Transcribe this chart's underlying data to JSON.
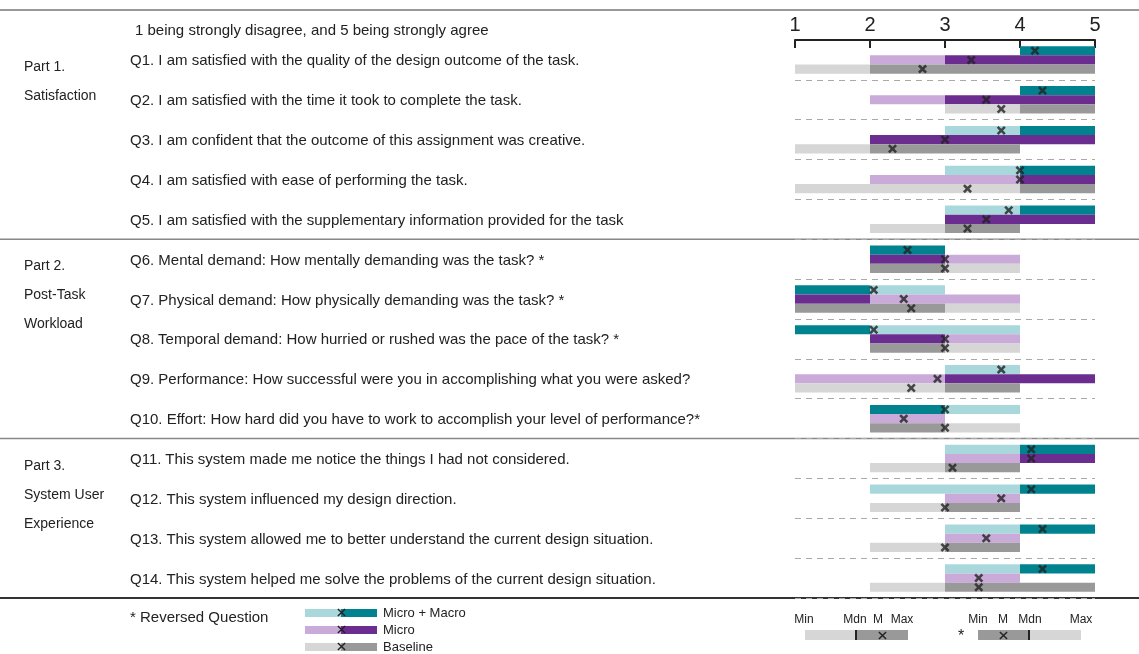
{
  "chart_data": {
    "type": "bar",
    "orientation": "horizontal",
    "title": "1 being strongly disagree, and 5 being strongly agree",
    "categories": [
      "Q1. I am satisfied with the quality of the design outcome of the task.",
      "Q2. I am satisfied with the time it took to complete the task.",
      "Q3. I am confident that the outcome of this assignment was creative.",
      "Q4. I am satisfied with ease of performing the task.",
      "Q5. I am satisfied with the supplementary information provided for the task",
      "Q6. Mental demand: How mentally demanding was the task? *",
      "Q7. Physical demand: How physically demanding was the task? *",
      "Q8. Temporal demand: How hurried or rushed was the pace of the task? *",
      "Q9. Performance: How successful were you in accomplishing what you were asked?",
      "Q10. Effort: How hard did you have to work to accomplish your level of performance?*",
      "Q11. This system made me notice the things I had not considered.",
      "Q12. This system influenced my design direction.",
      "Q13. This system allowed me to better understand the current design situation.",
      "Q14. This system helped me solve the problems of the current design situation."
    ],
    "xlim": [
      1,
      5
    ],
    "xticks": [
      1,
      2,
      3,
      4,
      5
    ],
    "grid": "y",
    "marker": "cross",
    "legend": "bottom",
    "series": [
      {
        "base": [
          null,
          null,
          3,
          3,
          3,
          2,
          1,
          1,
          3,
          2,
          3,
          2,
          3,
          3
        ],
        "values": [
          null,
          null,
          1,
          1,
          1,
          1,
          1,
          1,
          1,
          1,
          1,
          2,
          1,
          1
        ],
        "colors": [
          "#a8d8dc",
          null,
          "#a8d8dc",
          "#a8d8dc",
          "#a8d8dc",
          "#00838f",
          "#00838f",
          "#00838f",
          "#a8d8dc",
          "#00838f",
          "#a8d8dc",
          "#a8d8dc",
          "#a8d8dc",
          "#a8d8dc"
        ]
      },
      {
        "name": "Micro + Macro",
        "base": [
          4,
          4,
          4,
          4,
          4,
          null,
          2,
          2,
          null,
          3,
          4,
          4,
          4,
          4
        ],
        "values": [
          1,
          1,
          1,
          1,
          1,
          null,
          1,
          2,
          null,
          1,
          1,
          1,
          1,
          1
        ],
        "colors": [
          "#00838f",
          "#00838f",
          "#00838f",
          "#00838f",
          "#00838f",
          null,
          "#a8d8dc",
          "#a8d8dc",
          null,
          "#a8d8dc",
          "#00838f",
          "#00838f",
          "#00838f",
          "#00838f"
        ]
      },
      {
        "type": "scatter",
        "values": [
          4.2,
          4.3,
          3.75,
          4.0,
          3.85,
          2.5,
          2.05,
          2.05,
          3.75,
          3.0,
          4.15,
          4.15,
          4.3,
          4.3
        ]
      },
      {
        "base": [
          2,
          2,
          null,
          2,
          null,
          2,
          1,
          2,
          1,
          null,
          3,
          3,
          3,
          3
        ],
        "values": [
          1,
          1,
          null,
          2,
          null,
          1,
          1,
          1,
          2,
          null,
          1,
          1,
          1,
          1
        ],
        "colors": [
          "#c9aad8",
          "#c9aad8",
          null,
          "#c9aad8",
          null,
          "#6c2d91",
          "#6c2d91",
          "#6c2d91",
          "#c9aad8",
          null,
          "#c9aad8",
          "#c9aad8",
          "#c9aad8",
          "#c9aad8"
        ]
      },
      {
        "name": "Micro",
        "base": [
          3,
          3,
          2,
          4,
          3,
          3,
          2,
          3,
          3,
          2,
          4,
          null,
          null,
          null
        ],
        "values": [
          2,
          2,
          3,
          1,
          2,
          1,
          2,
          1,
          2,
          1,
          1,
          null,
          null,
          null
        ],
        "colors": [
          "#6c2d91",
          "#6c2d91",
          "#6c2d91",
          "#6c2d91",
          "#6c2d91",
          "#c9aad8",
          "#c9aad8",
          "#c9aad8",
          "#6c2d91",
          "#c9aad8",
          "#6c2d91",
          null,
          null,
          null
        ]
      },
      {
        "type": "scatter",
        "values": [
          3.35,
          3.55,
          3.0,
          4.0,
          3.55,
          3.0,
          2.45,
          3.0,
          2.9,
          2.45,
          4.15,
          3.75,
          3.55,
          3.45
        ]
      },
      {
        "base": [
          1,
          3,
          1,
          1,
          2,
          2,
          1,
          2,
          1,
          2,
          2,
          2,
          2,
          2
        ],
        "values": [
          1,
          1,
          1,
          3,
          1,
          1,
          2,
          1,
          2,
          1,
          1,
          1,
          1,
          1
        ],
        "colors": [
          "#d6d6d6",
          "#d6d6d6",
          "#d6d6d6",
          "#d6d6d6",
          "#d6d6d6",
          "#999999",
          "#999999",
          "#999999",
          "#d6d6d6",
          "#999999",
          "#d6d6d6",
          "#d6d6d6",
          "#d6d6d6",
          "#d6d6d6"
        ]
      },
      {
        "name": "Baseline",
        "base": [
          2,
          4,
          2,
          4,
          3,
          3,
          3,
          3,
          3,
          3,
          3,
          3,
          3,
          3
        ],
        "values": [
          3,
          1,
          2,
          1,
          1,
          1,
          1,
          1,
          1,
          1,
          1,
          1,
          1,
          2
        ],
        "colors": [
          "#999999",
          "#999999",
          "#999999",
          "#999999",
          "#999999",
          "#d6d6d6",
          "#d6d6d6",
          "#d6d6d6",
          "#999999",
          "#d6d6d6",
          "#999999",
          "#999999",
          "#999999",
          "#999999"
        ]
      },
      {
        "type": "scatter",
        "values": [
          2.7,
          3.75,
          2.3,
          3.3,
          3.3,
          3.0,
          2.55,
          3.0,
          2.55,
          3.0,
          3.1,
          3.0,
          3.0,
          3.45
        ]
      }
    ],
    "annotations": [
      "Part 1.",
      "Satisfaction",
      "Part 2.",
      "Post-Task",
      "Workload",
      "Part 3.",
      "System User",
      "Experience",
      "* Reversed Question",
      "Min",
      "Mdn",
      "M",
      "Max",
      "*",
      "Min",
      "M",
      "Mdn",
      "Max"
    ]
  }
}
